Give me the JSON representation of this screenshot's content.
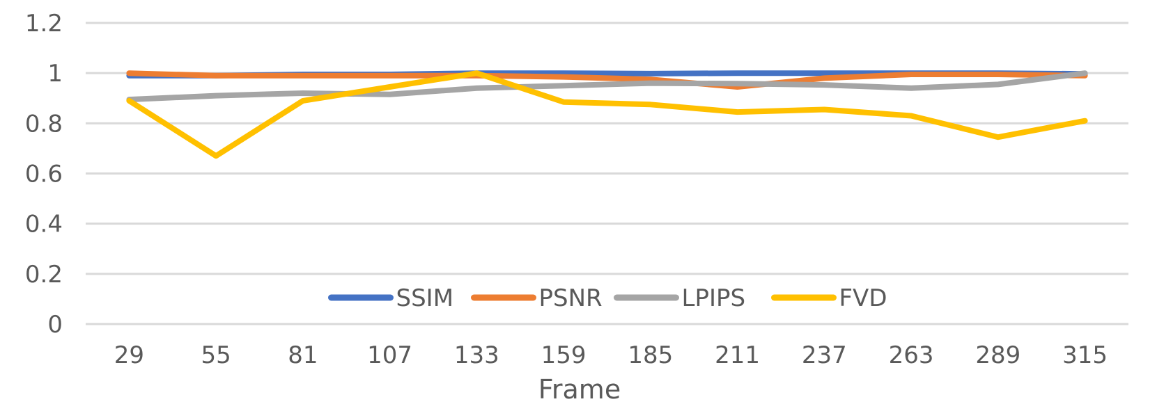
{
  "chart_data": {
    "type": "line",
    "xlabel": "Frame",
    "ylabel": "",
    "ylim": [
      0,
      1.2
    ],
    "y_ticks": [
      "0",
      "0.2",
      "0.4",
      "0.6",
      "0.8",
      "1",
      "1.2"
    ],
    "categories": [
      "29",
      "55",
      "81",
      "107",
      "133",
      "159",
      "185",
      "211",
      "237",
      "263",
      "289",
      "315"
    ],
    "grid": true,
    "legend_position": "bottom-inside",
    "series": [
      {
        "name": "SSIM",
        "color": "#4472C4",
        "values": [
          0.99,
          0.99,
          0.995,
          0.995,
          1.0,
          1.0,
          0.998,
          1.0,
          1.0,
          1.0,
          1.0,
          0.997
        ]
      },
      {
        "name": "PSNR",
        "color": "#ED7D31",
        "values": [
          1.0,
          0.99,
          0.99,
          0.99,
          0.99,
          0.985,
          0.975,
          0.945,
          0.98,
          0.995,
          0.995,
          0.99
        ]
      },
      {
        "name": "LPIPS",
        "color": "#A5A5A5",
        "values": [
          0.895,
          0.91,
          0.92,
          0.915,
          0.94,
          0.95,
          0.96,
          0.958,
          0.953,
          0.94,
          0.955,
          1.0
        ]
      },
      {
        "name": "FVD",
        "color": "#FFC000",
        "values": [
          0.89,
          0.67,
          0.89,
          0.945,
          1.0,
          0.885,
          0.875,
          0.845,
          0.855,
          0.83,
          0.745,
          0.81
        ]
      }
    ]
  }
}
